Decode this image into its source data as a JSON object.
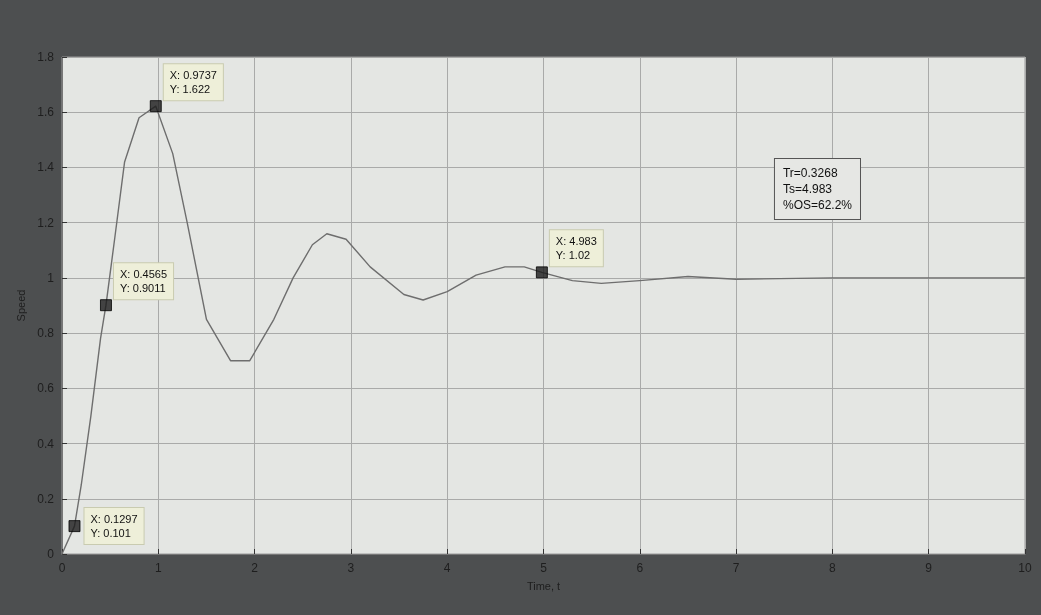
{
  "chart_data": {
    "type": "line",
    "xlabel": "Time, t",
    "ylabel": "Speed",
    "xlim": [
      0,
      10
    ],
    "xticks": [
      0,
      1,
      2,
      3,
      4,
      5,
      6,
      7,
      8,
      9,
      10
    ],
    "ylim": [
      0,
      1.8
    ],
    "yticks": [
      0,
      0.2,
      0.4,
      0.6,
      0.8,
      1,
      1.2,
      1.4,
      1.6,
      1.8
    ],
    "grid": true,
    "marker": "none",
    "line_style": "solid",
    "series": [
      {
        "color": "#6e6e6e",
        "x": [
          0,
          0.1297,
          0.2,
          0.3,
          0.4,
          0.4565,
          0.55,
          0.65,
          0.8,
          0.9737,
          1.15,
          1.3,
          1.5,
          1.75,
          1.95,
          2.2,
          2.4,
          2.6,
          2.75,
          2.95,
          3.2,
          3.55,
          3.75,
          4.0,
          4.3,
          4.6,
          4.8,
          4.983,
          5.3,
          5.6,
          6.0,
          6.5,
          7.0,
          8.0,
          9.0,
          10.0
        ],
        "values": [
          0,
          0.101,
          0.25,
          0.5,
          0.78,
          0.9011,
          1.15,
          1.42,
          1.58,
          1.622,
          1.45,
          1.2,
          0.85,
          0.7,
          0.7,
          0.85,
          1.0,
          1.12,
          1.16,
          1.14,
          1.04,
          0.94,
          0.92,
          0.95,
          1.01,
          1.04,
          1.04,
          1.02,
          0.99,
          0.98,
          0.99,
          1.005,
          0.995,
          1.0,
          1.0,
          1.0
        ]
      },
      {
        "type": "scatter",
        "marker": "square",
        "color": "#1a1a1a",
        "x": [
          0.1297,
          0.4565,
          0.9737,
          4.983
        ],
        "values": [
          0.101,
          0.9011,
          1.622,
          1.02
        ]
      }
    ],
    "annotations": [
      {
        "text": "X: 0.1297\nY: 0.101",
        "x": 0.1297,
        "y": 0.101
      },
      {
        "text": "X: 0.4565\nY: 0.9011",
        "x": 0.4565,
        "y": 0.9011
      },
      {
        "text": "X: 0.9737\nY: 1.622",
        "x": 0.9737,
        "y": 1.622
      },
      {
        "text": "X: 4.983\nY: 1.02",
        "x": 4.983,
        "y": 1.02
      },
      "Tr=0.3268\nTs=4.983\n%OS=62.2%"
    ]
  }
}
